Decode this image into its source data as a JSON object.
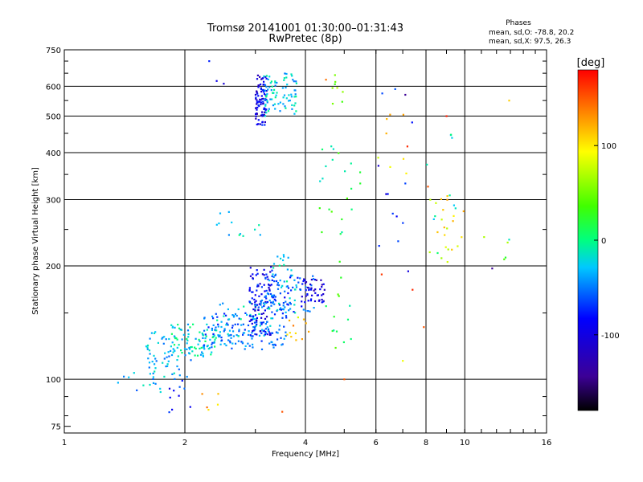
{
  "chart_data": {
    "type": "scatter",
    "title": "Tromsø 20141001 01:30:00–01:31:43",
    "subtitle": "RwPretec (8p)",
    "xlabel": "Frequency [MHz]",
    "ylabel": "Stationary phase Virtual Height [km]",
    "x_scale": "log",
    "y_scale": "log",
    "xlim": [
      1,
      16
    ],
    "ylim": [
      72,
      750
    ],
    "x_ticks": [
      1,
      2,
      4,
      6,
      8,
      10,
      16
    ],
    "x_tick_labels": [
      "1",
      "2",
      "4",
      "6",
      "8",
      "10",
      "16"
    ],
    "y_ticks": [
      75,
      100,
      200,
      300,
      400,
      500,
      600,
      750
    ],
    "y_tick_labels": [
      "75",
      "100",
      "200",
      "300",
      "400",
      "500",
      "600",
      "750"
    ],
    "grid": true,
    "info": {
      "heading": "Phases",
      "line_o": "mean, sd,O: -78.8, 20.2",
      "line_x": "mean, sd,X:  97.5, 26.3"
    },
    "colorbar": {
      "label": "[deg]",
      "range": [
        -180,
        180
      ],
      "ticks": [
        100,
        0,
        -100
      ],
      "tick_labels": [
        "100",
        "0",
        "-100"
      ]
    },
    "clusters": [
      {
        "f": [
          1.35,
          1.75
        ],
        "h": [
          92,
          105
        ],
        "phase": -40,
        "n": 14
      },
      {
        "f": [
          1.6,
          2.1
        ],
        "h": [
          100,
          135
        ],
        "phase": -40,
        "n": 60
      },
      {
        "f": [
          1.8,
          2.4
        ],
        "h": [
          115,
          140
        ],
        "phase": -20,
        "n": 80
      },
      {
        "f": [
          2.2,
          3.0
        ],
        "h": [
          120,
          150
        ],
        "phase": -60,
        "n": 90
      },
      {
        "f": [
          2.4,
          3.3
        ],
        "h": [
          130,
          160
        ],
        "phase": -30,
        "n": 50
      },
      {
        "f": [
          2.9,
          3.3
        ],
        "h": [
          130,
          200
        ],
        "phase": -100,
        "n": 110
      },
      {
        "f": [
          3.1,
          3.6
        ],
        "h": [
          120,
          170
        ],
        "phase": -60,
        "n": 60
      },
      {
        "f": [
          3.2,
          3.8
        ],
        "h": [
          150,
          220
        ],
        "phase": -30,
        "n": 40
      },
      {
        "f": [
          3.3,
          4.2
        ],
        "h": [
          150,
          190
        ],
        "phase": -75,
        "n": 60
      },
      {
        "f": [
          3.9,
          4.5
        ],
        "h": [
          160,
          185
        ],
        "phase": -120,
        "n": 40
      },
      {
        "f": [
          3.6,
          4.1
        ],
        "h": [
          125,
          150
        ],
        "phase": 110,
        "n": 12
      },
      {
        "f": [
          3.0,
          3.2
        ],
        "h": [
          470,
          650
        ],
        "phase": -110,
        "n": 90
      },
      {
        "f": [
          3.15,
          3.8
        ],
        "h": [
          500,
          650
        ],
        "phase": -30,
        "n": 80
      },
      {
        "f": [
          2.4,
          3.1
        ],
        "h": [
          240,
          280
        ],
        "phase": -30,
        "n": 12
      },
      {
        "f": [
          1.8,
          2.3
        ],
        "h": [
          80,
          100
        ],
        "phase": -90,
        "n": 10
      },
      {
        "f": [
          2.2,
          2.6
        ],
        "h": [
          80,
          92
        ],
        "phase": 130,
        "n": 5
      },
      {
        "f": [
          4.3,
          5.5
        ],
        "h": [
          230,
          420
        ],
        "phase": 10,
        "n": 22
      },
      {
        "f": [
          4.4,
          5.0
        ],
        "h": [
          520,
          650
        ],
        "phase": 60,
        "n": 8
      },
      {
        "f": [
          4.5,
          5.2
        ],
        "h": [
          120,
          220
        ],
        "phase": 20,
        "n": 14
      },
      {
        "f": [
          6.0,
          7.5
        ],
        "h": [
          180,
          590
        ],
        "phase": -100,
        "n": 12
      },
      {
        "f": [
          6.0,
          7.2
        ],
        "h": [
          320,
          520
        ],
        "phase": 100,
        "n": 8
      },
      {
        "f": [
          8.0,
          10.0
        ],
        "h": [
          200,
          310
        ],
        "phase": 95,
        "n": 22
      },
      {
        "f": [
          8.0,
          10.0
        ],
        "h": [
          185,
          470
        ],
        "phase": -20,
        "n": 10
      },
      {
        "f": [
          10.5,
          13.0
        ],
        "h": [
          195,
          240
        ],
        "phase": 40,
        "n": 4
      },
      {
        "f": [
          7.0,
          9.5
        ],
        "h": [
          95,
          500
        ],
        "phase": 150,
        "n": 4
      }
    ],
    "outliers": [
      {
        "f": 2.3,
        "h": 700,
        "phase": -90
      },
      {
        "f": 2.4,
        "h": 620,
        "phase": -110
      },
      {
        "f": 2.5,
        "h": 610,
        "phase": -120
      },
      {
        "f": 4.5,
        "h": 625,
        "phase": 140
      },
      {
        "f": 6.7,
        "h": 590,
        "phase": -70
      },
      {
        "f": 7.1,
        "h": 570,
        "phase": -150
      },
      {
        "f": 9.0,
        "h": 500,
        "phase": 170
      },
      {
        "f": 12.9,
        "h": 550,
        "phase": 110
      },
      {
        "f": 12.9,
        "h": 235,
        "phase": -15
      },
      {
        "f": 11.7,
        "h": 197,
        "phase": -150
      },
      {
        "f": 5.0,
        "h": 100,
        "phase": 150
      },
      {
        "f": 6.2,
        "h": 190,
        "phase": 160
      },
      {
        "f": 7.0,
        "h": 112,
        "phase": 90
      },
      {
        "f": 3.5,
        "h": 82,
        "phase": 150
      }
    ]
  }
}
